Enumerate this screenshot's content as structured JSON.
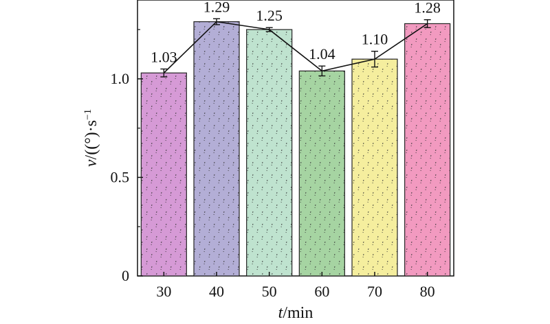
{
  "chart_data": {
    "type": "bar",
    "categories": [
      "30",
      "40",
      "50",
      "60",
      "70",
      "80"
    ],
    "values": [
      1.03,
      1.29,
      1.25,
      1.04,
      1.1,
      1.28
    ],
    "errors": [
      0.02,
      0.015,
      0.01,
      0.025,
      0.04,
      0.02
    ],
    "data_labels": [
      "1.03",
      "1.29",
      "1.25",
      "1.04",
      "1.10",
      "1.28"
    ],
    "bar_colors": [
      "#d69ad6",
      "#b3aed6",
      "#bfe3cf",
      "#a6d4a2",
      "#f5ee9e",
      "#f29ac0"
    ],
    "line_overlay": true,
    "xlabel_var": "t",
    "xlabel_unit": "/min",
    "ylabel_var": "v",
    "ylabel_unit": "/((°)·s",
    "ylabel_exp": "−1",
    "ylim": [
      0,
      1.4
    ],
    "yticks": [
      "0",
      "0.5",
      "1.0"
    ],
    "ytick_values": [
      0,
      0.5,
      1.0
    ],
    "grid": false,
    "legend": "none"
  }
}
